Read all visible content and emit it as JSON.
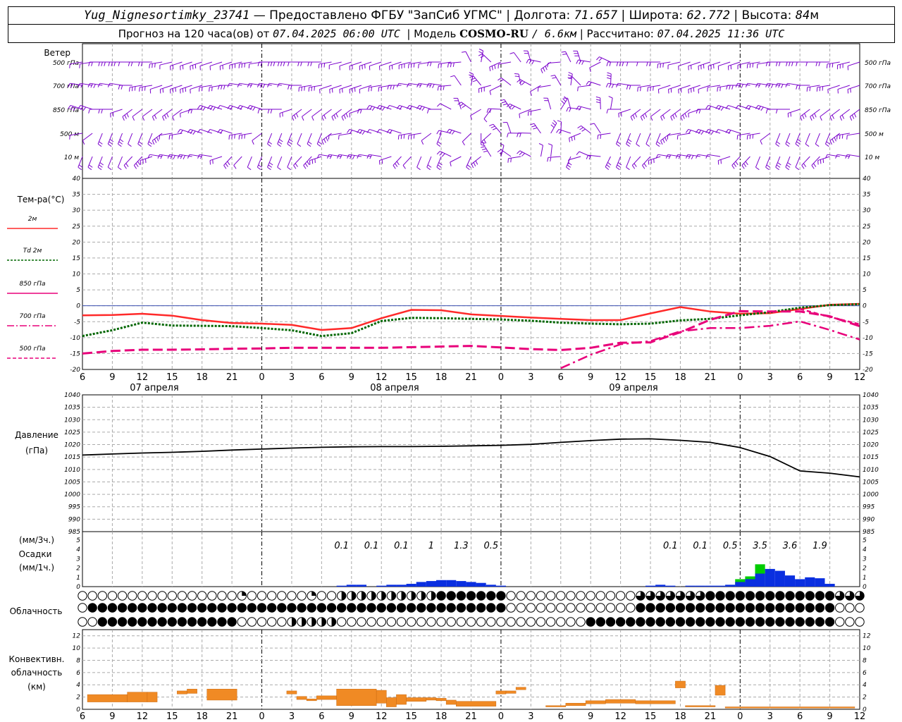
{
  "header": {
    "station": "Yug_Nignesortimky_23741",
    "provider": "— Предоставлено ФГБУ \"ЗапСиб УГМС\"",
    "lon_label": "Долгота:",
    "lon": "71.657",
    "lat_label": "Широта:",
    "lat": "62.772",
    "alt_label": "Высота:",
    "alt": "84",
    "alt_unit": "м",
    "forecast_label": "Прогноз на 120 часа(ов) от",
    "forecast_start": "07.04.2025 06:00 UTC",
    "model_label": "Модель",
    "model": "COSMO-RU",
    "resolution": "/ 6.6км",
    "calc_label": "Рассчитано:",
    "calc_time": "07.04.2025 11:36 UTC"
  },
  "labels": {
    "wind": "Ветер",
    "wind_levels": [
      "500 гПа",
      "700 гПа",
      "850 гПа",
      "500 м",
      "10  м"
    ],
    "temp_title": "Тем-ра(°С)",
    "temp_legend": [
      "2м",
      "Td  2м",
      "850 гПа",
      "700 гПа",
      "500 гПа"
    ],
    "pressure_title": "Давление",
    "pressure_unit": "(гПа)",
    "precip_unit3": "(мм/3ч.)",
    "precip_title": "Осадки",
    "precip_unit1": "(мм/1ч.)",
    "cloud_title": "Облачность",
    "conv_title": "Конвективн.",
    "conv_title2": "облачность",
    "conv_unit": "(км)"
  },
  "x_ticks": [
    "6",
    "9",
    "12",
    "15",
    "18",
    "21",
    "0",
    "3",
    "6",
    "9",
    "12",
    "15",
    "18",
    "21",
    "0",
    "3",
    "6",
    "9",
    "12",
    "15",
    "18",
    "21",
    "0",
    "3",
    "6",
    "9",
    "12"
  ],
  "dates": [
    "07 апреля",
    "08 апреля",
    "09 апреля"
  ],
  "colors": {
    "wind": "#7a00cc",
    "t2m": "#ff2a2a",
    "td2m": "#006600",
    "t850": "#e8007a",
    "t700": "#e8007a",
    "t500": "#e8007a",
    "pressure": "#000000",
    "precip_3h": "#00cc00",
    "precip_1h": "#0a2fe0",
    "conv": "#f08a24",
    "grid": "#aaaaaa"
  },
  "icons": {
    "wind_barb": "wind-barb-icon",
    "cloud": "cloud-cover-circle-icon"
  },
  "chart_data": [
    {
      "type": "line",
      "title": "Тем-ра(°С)",
      "x_hours": [
        0,
        3,
        6,
        9,
        12,
        15,
        18,
        21,
        24,
        27,
        30,
        33,
        36,
        39,
        42,
        45,
        48,
        51,
        54,
        57,
        60,
        63,
        66,
        69,
        72,
        75,
        78
      ],
      "ylim": [
        -20,
        40
      ],
      "series": [
        {
          "name": "2м",
          "values": [
            -3.0,
            -2.9,
            -2.5,
            -3.1,
            -4.5,
            -5.4,
            -5.6,
            -6.0,
            -7.6,
            -7.0,
            -3.9,
            -1.3,
            -1.4,
            -2.7,
            -3.2,
            -3.7,
            -4.1,
            -4.5,
            -4.5,
            -2.4,
            -0.4,
            -1.8,
            -2.5,
            -2.3,
            -1.0,
            0.3,
            0.6
          ]
        },
        {
          "name": "Td  2м",
          "values": [
            -9.5,
            -7.7,
            -5.3,
            -6.2,
            -6.3,
            -6.4,
            -7.0,
            -7.7,
            -9.5,
            -8.6,
            -4.8,
            -3.8,
            -3.9,
            -4.1,
            -4.3,
            -4.7,
            -5.3,
            -5.6,
            -5.8,
            -5.6,
            -4.6,
            -4.1,
            -3.0,
            -2.0,
            -0.6,
            0.2,
            0.5
          ]
        },
        {
          "name": "850 гПа",
          "values": [
            -15.0,
            -14.2,
            -13.8,
            -13.8,
            -13.7,
            -13.5,
            -13.4,
            -13.2,
            -13.2,
            -13.2,
            -13.2,
            -13.0,
            -12.8,
            -12.6,
            -13.1,
            -13.6,
            -13.9,
            -13.2,
            -11.6,
            -11.5,
            -8.3,
            -4.4,
            -1.7,
            -1.8,
            -1.8,
            -3.3,
            -6.4
          ]
        },
        {
          "name": "700 гПа",
          "values": [
            null,
            null,
            null,
            null,
            null,
            null,
            null,
            null,
            null,
            null,
            null,
            null,
            null,
            null,
            null,
            null,
            -19.6,
            -15.4,
            -12.1,
            -11.1,
            -8.0,
            -7.0,
            -7.0,
            -6.3,
            -4.9,
            -7.6,
            -10.6
          ]
        },
        {
          "name": "500 гПа",
          "values": [
            null,
            null,
            null,
            null,
            null,
            null,
            null,
            null,
            null,
            null,
            null,
            null,
            null,
            null,
            null,
            null,
            null,
            null,
            null,
            null,
            null,
            null,
            null,
            null,
            -1.0,
            -3.5,
            -5.8
          ]
        }
      ]
    },
    {
      "type": "line",
      "title": "Давление",
      "ylabel": "(гПа)",
      "x_hours": [
        0,
        3,
        6,
        9,
        12,
        15,
        18,
        21,
        24,
        27,
        30,
        33,
        36,
        39,
        42,
        45,
        48,
        51,
        54,
        57,
        60,
        63,
        66,
        69,
        72,
        75,
        78
      ],
      "ylim": [
        985,
        1040
      ],
      "series": [
        {
          "name": "Давление",
          "values": [
            1015.8,
            1016.2,
            1016.6,
            1016.9,
            1017.3,
            1017.8,
            1018.2,
            1018.6,
            1018.9,
            1019.1,
            1019.2,
            1019.2,
            1019.3,
            1019.5,
            1019.7,
            1020.1,
            1020.9,
            1021.6,
            1022.2,
            1022.3,
            1021.7,
            1020.9,
            1018.8,
            1015.2,
            1009.4,
            1008.5,
            1007.0
          ]
        }
      ]
    },
    {
      "type": "bar",
      "title": "Осадки",
      "ylabel": "(мм/1ч.)",
      "ylim": [
        0,
        5
      ],
      "labels_3h": [
        {
          "hour": 26,
          "text": "0.1"
        },
        {
          "hour": 29,
          "text": "0.1"
        },
        {
          "hour": 32,
          "text": "0.1"
        },
        {
          "hour": 35,
          "text": "1"
        },
        {
          "hour": 38,
          "text": "1.3"
        },
        {
          "hour": 41,
          "text": "0.5"
        },
        {
          "hour": 59,
          "text": "0.1"
        },
        {
          "hour": 62,
          "text": "0.1"
        },
        {
          "hour": 65,
          "text": "0.5"
        },
        {
          "hour": 68,
          "text": "3.5"
        },
        {
          "hour": 71,
          "text": "3.6"
        },
        {
          "hour": 74,
          "text": "1.9"
        }
      ],
      "hourly_blue": [
        [
          26,
          0.1
        ],
        [
          27,
          0.2
        ],
        [
          28,
          0.2
        ],
        [
          30,
          0.1
        ],
        [
          31,
          0.2
        ],
        [
          32,
          0.2
        ],
        [
          33,
          0.3
        ],
        [
          34,
          0.5
        ],
        [
          35,
          0.6
        ],
        [
          36,
          0.7
        ],
        [
          37,
          0.7
        ],
        [
          38,
          0.6
        ],
        [
          39,
          0.5
        ],
        [
          40,
          0.4
        ],
        [
          41,
          0.2
        ],
        [
          42,
          0.1
        ],
        [
          57,
          0.1
        ],
        [
          58,
          0.2
        ],
        [
          59,
          0.1
        ],
        [
          61,
          0.1
        ],
        [
          62,
          0.1
        ],
        [
          63,
          0.1
        ],
        [
          64,
          0.1
        ],
        [
          65,
          0.2
        ],
        [
          66,
          0.5
        ],
        [
          67,
          0.8
        ],
        [
          68,
          1.4
        ],
        [
          69,
          1.9
        ],
        [
          70,
          1.7
        ],
        [
          71,
          1.2
        ],
        [
          72,
          0.8
        ],
        [
          73,
          1.0
        ],
        [
          74,
          0.9
        ],
        [
          75,
          0.3
        ]
      ],
      "hourly_green": [
        [
          66,
          0.8
        ],
        [
          67,
          1.1
        ],
        [
          68,
          2.4
        ]
      ]
    },
    {
      "type": "bar",
      "title": "Конвективн. облачность",
      "ylabel": "(км)",
      "ylim": [
        0,
        13
      ],
      "segments": [
        [
          1,
          5,
          1.2,
          2.4
        ],
        [
          5,
          7,
          1.2,
          2.8
        ],
        [
          7,
          8,
          1.2,
          2.8
        ],
        [
          10,
          11,
          2.5,
          3.0
        ],
        [
          11,
          12,
          2.6,
          3.3
        ],
        [
          13,
          16,
          1.5,
          3.3
        ],
        [
          16,
          17,
          0,
          0
        ],
        [
          21,
          22,
          2.5,
          3.0
        ],
        [
          22,
          23,
          1.6,
          2.1
        ],
        [
          23,
          24,
          1.4,
          1.7
        ],
        [
          24,
          26,
          1.6,
          2.2
        ],
        [
          26,
          30,
          0.6,
          3.3
        ],
        [
          30,
          31,
          1.0,
          3.1
        ],
        [
          31,
          32,
          0.4,
          1.9
        ],
        [
          32,
          33,
          0.8,
          2.4
        ],
        [
          33,
          35,
          1.3,
          1.9
        ],
        [
          35,
          36,
          1.5,
          1.9
        ],
        [
          36,
          37,
          1.4,
          1.8
        ],
        [
          37,
          38,
          0.8,
          1.5
        ],
        [
          38,
          42,
          0.5,
          1.3
        ],
        [
          42,
          43,
          2.5,
          3.0
        ],
        [
          43,
          44,
          2.6,
          3.0
        ],
        [
          44,
          45,
          3.2,
          3.6
        ],
        [
          47,
          49,
          0.4,
          0.6
        ],
        [
          49,
          51,
          0.6,
          1.0
        ],
        [
          51,
          53,
          0.9,
          1.4
        ],
        [
          53,
          56,
          1.0,
          1.6
        ],
        [
          56,
          60,
          0.9,
          1.4
        ],
        [
          60,
          61,
          3.5,
          4.6
        ],
        [
          61,
          64,
          0.4,
          0.6
        ],
        [
          64,
          65,
          2.3,
          3.9
        ],
        [
          65,
          78,
          0.2,
          0.4
        ]
      ]
    }
  ]
}
